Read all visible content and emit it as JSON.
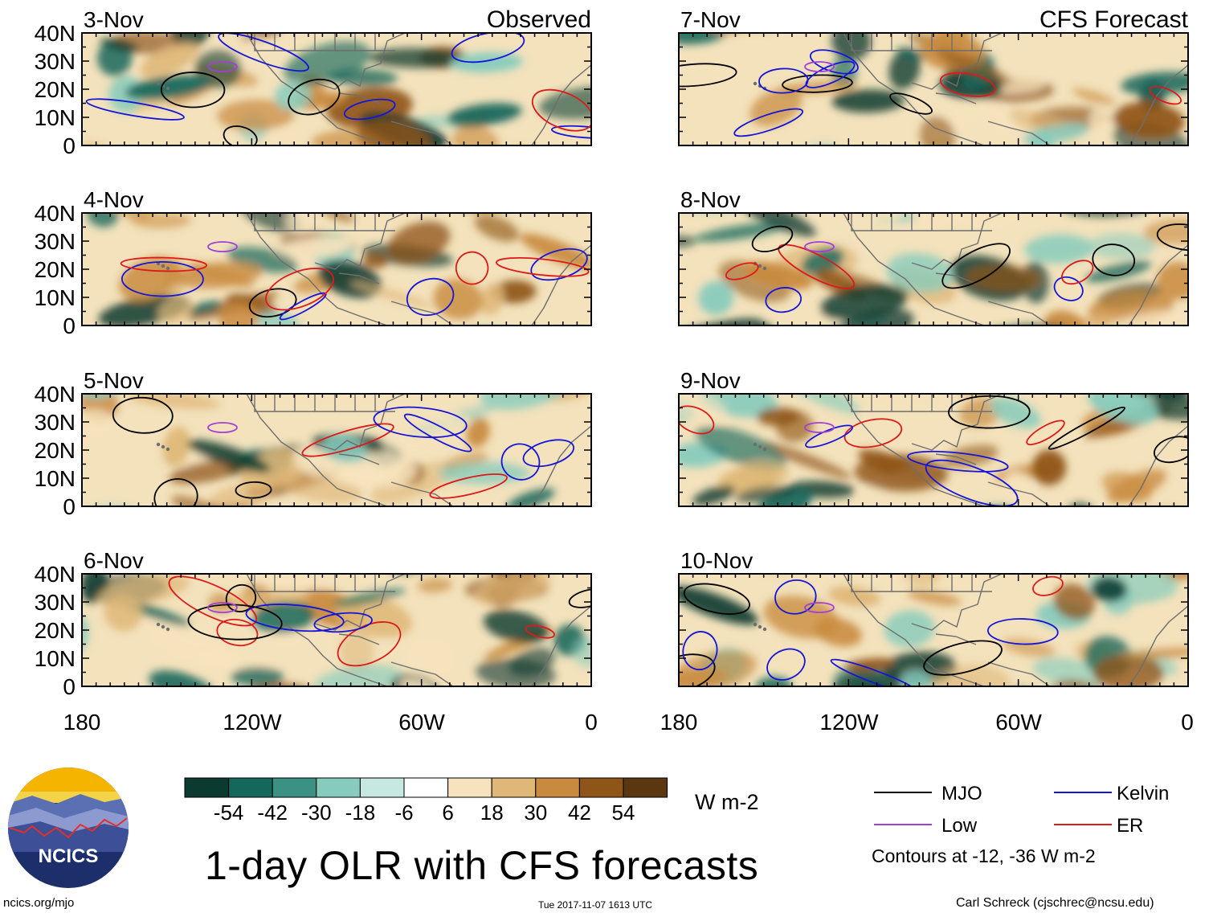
{
  "figure": {
    "title": "1-day OLR with CFS forecasts",
    "observed_label": "Observed",
    "forecast_label": "CFS Forecast",
    "footer_left": "ncics.org/mjo",
    "footer_center": "Tue 2017-11-07 1613 UTC",
    "footer_right": "Carl Schreck (cjschrec@ncsu.edu)",
    "logo_text": "NCICS"
  },
  "panels": {
    "observed": [
      "3-Nov",
      "4-Nov",
      "5-Nov",
      "6-Nov"
    ],
    "forecast": [
      "7-Nov",
      "8-Nov",
      "9-Nov",
      "10-Nov"
    ]
  },
  "axes": {
    "lat_ticks": [
      "40N",
      "30N",
      "20N",
      "10N",
      "0"
    ],
    "lon_ticks": [
      "180",
      "120W",
      "60W",
      "0"
    ]
  },
  "colorbar": {
    "units": "W m-2",
    "tick_labels": [
      "-54",
      "-42",
      "-30",
      "-18",
      "-6",
      "6",
      "18",
      "30",
      "42",
      "54"
    ],
    "colors": [
      "#0b3a30",
      "#16675b",
      "#3a9184",
      "#86cbbc",
      "#c6e8e0",
      "#ffffff",
      "#f6e3bd",
      "#dfb778",
      "#c88a3e",
      "#8f5418",
      "#5a3711"
    ]
  },
  "legend": {
    "items": [
      {
        "label": "MJO",
        "color": "#000000"
      },
      {
        "label": "Kelvin",
        "color": "#1515d8"
      },
      {
        "label": "Low",
        "color": "#a23fd8"
      },
      {
        "label": "ER",
        "color": "#dd1a1a"
      }
    ],
    "note": "Contours at -12, -36 W m-2"
  }
}
